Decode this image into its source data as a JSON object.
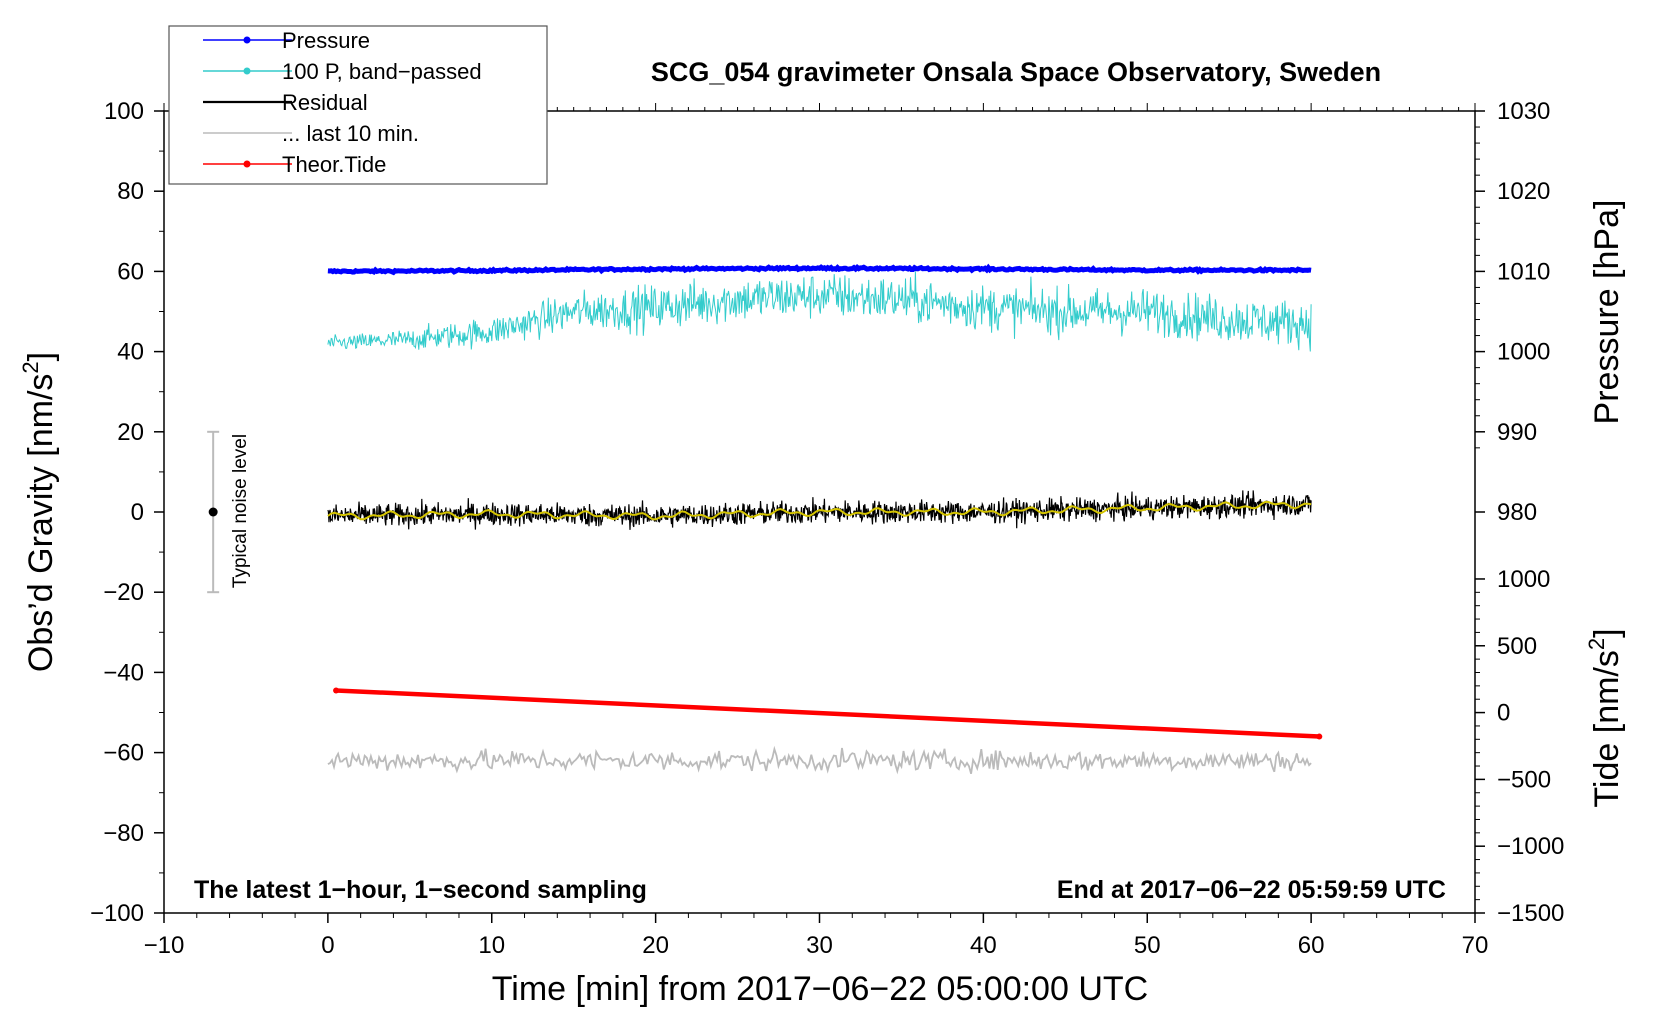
{
  "chart_data": {
    "type": "line",
    "title": "SCG_054 gravimeter Onsala Space Observatory, Sweden",
    "xlabel": "Time [min] from 2017−06−22 05:00:00 UTC",
    "ylabel": "Obs’d Gravity [nm/s²]",
    "ylabel_main": "Obs’d Gravity [nm/s",
    "ylabel_sup": "2",
    "ylabel_end": "]",
    "y2label": "Pressure [hPa]",
    "y3label_main": "Tide [nm/s",
    "y3label_sup": "2",
    "y3label_end": "]",
    "xlim": [
      -10,
      70
    ],
    "ylim": [
      -100,
      100
    ],
    "x_ticks": [
      -10,
      0,
      10,
      20,
      30,
      40,
      50,
      60,
      70
    ],
    "x_tick_labels": [
      "−10",
      "0",
      "10",
      "20",
      "30",
      "40",
      "50",
      "60",
      "70"
    ],
    "y_ticks": [
      -100,
      -80,
      -60,
      -40,
      -20,
      0,
      20,
      40,
      60,
      80,
      100
    ],
    "y_tick_labels": [
      "−100",
      "−80",
      "−60",
      "−40",
      "−20",
      "0",
      "20",
      "40",
      "60",
      "80",
      "100"
    ],
    "pressure_axis": {
      "ticks": [
        980,
        990,
        1000,
        1010,
        1020,
        1030
      ],
      "tick_labels": [
        "980",
        "990",
        "1000",
        "1010",
        "1020",
        "1030"
      ],
      "mapping": {
        "hpa_at_gravity_60": 1010,
        "gravity_per_hpa": 2.0
      }
    },
    "tide_axis": {
      "ticks": [
        -1500,
        -1000,
        -500,
        0,
        500,
        1000
      ],
      "tick_labels": [
        "−1500",
        "−1000",
        "−500",
        "0",
        "500",
        "1000"
      ],
      "mapping": {
        "tide_at_gravity_minus_100": -1500,
        "gravity_per_nms2": 0.02
      }
    },
    "series": [
      {
        "name": "Pressure",
        "color": "#0000ff",
        "x": [
          0,
          10,
          20,
          30,
          40,
          50,
          60
        ],
        "y": [
          60.0,
          60.2,
          60.6,
          60.8,
          60.6,
          60.3,
          60.3
        ]
      },
      {
        "name": "100 P, band−passed",
        "color": "#33cccc",
        "x": [
          0,
          5,
          10,
          15,
          20,
          25,
          30,
          35,
          40,
          45,
          50,
          55,
          60
        ],
        "y": [
          42,
          43,
          45,
          50,
          51,
          53,
          54,
          53,
          51,
          50,
          50,
          48,
          47
        ]
      },
      {
        "name": "Residual",
        "color": "#000000",
        "x": [
          0,
          10,
          20,
          30,
          40,
          50,
          60
        ],
        "y": [
          -1,
          -0.5,
          -1,
          0,
          0,
          1,
          2
        ]
      },
      {
        "name": "... last 10 min.",
        "color": "#bbbbbb",
        "x": [
          0,
          10,
          20,
          30,
          40,
          50,
          60
        ],
        "y": [
          -62,
          -62,
          -62,
          -62,
          -62,
          -62,
          -62
        ]
      },
      {
        "name": "Theor.Tide",
        "color": "#ff0000",
        "x": [
          0.5,
          60.5
        ],
        "y": [
          -44.5,
          -56
        ]
      }
    ],
    "smoothed_color": "#d4c400",
    "noise_bar": {
      "x": -7,
      "y": 0,
      "low": -20,
      "high": 20,
      "label": "Typical noise level"
    },
    "annotations": {
      "left": "The latest 1−hour, 1−second sampling",
      "right": "End at 2017−06−22 05:59:59 UTC"
    },
    "legend": {
      "position": "top-left",
      "entries": [
        {
          "label": "Pressure",
          "color": "#0000ff",
          "marker": true
        },
        {
          "label": "100 P, band−passed",
          "color": "#33cccc",
          "marker": true
        },
        {
          "label": "Residual",
          "color": "#000000",
          "marker": false
        },
        {
          "label": "... last 10 min.",
          "color": "#bbbbbb",
          "marker": false
        },
        {
          "label": "Theor.Tide",
          "color": "#ff0000",
          "marker": true
        }
      ]
    },
    "grid": false
  }
}
